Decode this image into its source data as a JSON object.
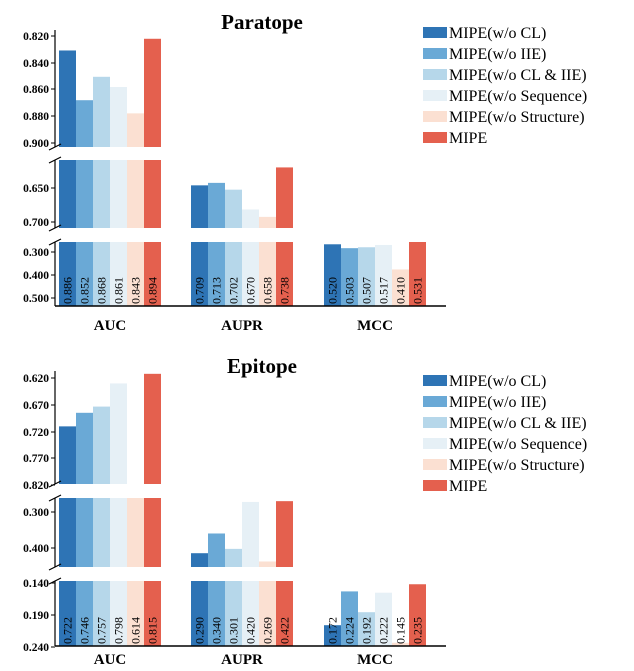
{
  "colors": {
    "MIPE(w/o CL)": "#2e74b5",
    "MIPE(w/o IIE)": "#6aa9d6",
    "MIPE(w/o CL & IIE)": "#b6d7ea",
    "MIPE(w/o Sequence)": "#e6f0f6",
    "MIPE(w/o Structure)": "#fbe0d2",
    "MIPE": "#e4604e"
  },
  "chart_data": [
    {
      "type": "bar",
      "title": "Paratope",
      "categories": [
        "AUC",
        "AUPR",
        "MCC"
      ],
      "series": [
        {
          "name": "MIPE(w/o CL)",
          "values": [
            0.886,
            0.709,
            0.52
          ],
          "labels": [
            "0.886",
            "0.709",
            "0.520"
          ]
        },
        {
          "name": "MIPE(w/o IIE)",
          "values": [
            0.852,
            0.713,
            0.503
          ],
          "labels": [
            "0.852",
            "0.713",
            "0.503"
          ]
        },
        {
          "name": "MIPE(w/o CL & IIE)",
          "values": [
            0.868,
            0.702,
            0.507
          ],
          "labels": [
            "0.868",
            "0.702",
            "0.507"
          ]
        },
        {
          "name": "MIPE(w/o Sequence)",
          "values": [
            0.861,
            0.67,
            0.517
          ],
          "labels": [
            "0.861",
            "0.670",
            "0.517"
          ]
        },
        {
          "name": "MIPE(w/o Structure)",
          "values": [
            0.843,
            0.658,
            0.41
          ],
          "labels": [
            "0.843",
            "0.658",
            "0.410"
          ]
        },
        {
          "name": "MIPE",
          "values": [
            0.894,
            0.738,
            0.531
          ],
          "labels": [
            "0.894",
            "0.738",
            "0.531"
          ]
        }
      ],
      "broken_axis_segments": [
        {
          "ylim": [
            0.82,
            0.9
          ],
          "ticks": [
            "0.820",
            "0.840",
            "0.860",
            "0.880",
            "0.900"
          ]
        },
        {
          "ylim": [
            0.64,
            0.75
          ],
          "ticks": [
            "0.650",
            "0.700"
          ]
        },
        {
          "ylim": [
            0.25,
            0.53
          ],
          "ticks": [
            "0.300",
            "0.400",
            "0.500"
          ]
        }
      ]
    },
    {
      "type": "bar",
      "title": "Epitope",
      "categories": [
        "AUC",
        "AUPR",
        "MCC"
      ],
      "series": [
        {
          "name": "MIPE(w/o CL)",
          "values": [
            0.722,
            0.29,
            0.172
          ],
          "labels": [
            "0.722",
            "0.290",
            "0.172"
          ]
        },
        {
          "name": "MIPE(w/o IIE)",
          "values": [
            0.746,
            0.34,
            0.224
          ],
          "labels": [
            "0.746",
            "0.340",
            "0.224"
          ]
        },
        {
          "name": "MIPE(w/o CL & IIE)",
          "values": [
            0.757,
            0.301,
            0.192
          ],
          "labels": [
            "0.757",
            "0.301",
            "0.192"
          ]
        },
        {
          "name": "MIPE(w/o Sequence)",
          "values": [
            0.798,
            0.42,
            0.222
          ],
          "labels": [
            "0.798",
            "0.420",
            "0.222"
          ]
        },
        {
          "name": "MIPE(w/o Structure)",
          "values": [
            0.614,
            0.269,
            0.145
          ],
          "labels": [
            "0.614",
            "0.269",
            "0.145"
          ]
        },
        {
          "name": "MIPE",
          "values": [
            0.815,
            0.422,
            0.235
          ],
          "labels": [
            "0.815",
            "0.422",
            "0.235"
          ]
        }
      ],
      "broken_axis_segments": [
        {
          "ylim": [
            0.62,
            0.82
          ],
          "ticks": [
            "0.620",
            "0.670",
            "0.720",
            "0.770",
            "0.820"
          ]
        },
        {
          "ylim": [
            0.255,
            0.43
          ],
          "ticks": [
            "0.300",
            "0.400"
          ]
        },
        {
          "ylim": [
            0.14,
            0.24
          ],
          "ticks": [
            "0.140",
            "0.190",
            "0.240"
          ]
        }
      ]
    }
  ]
}
